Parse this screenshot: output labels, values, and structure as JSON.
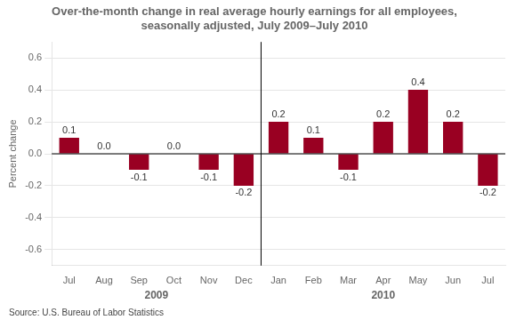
{
  "chart_data": {
    "type": "bar",
    "title": "Over-the-month change in real average hourly earnings for all employees,\nseasonally adjusted, July 2009–July 2010",
    "ylabel": "Percent change",
    "source": "Source: U.S. Bureau of Labor Statistics",
    "annotations": [
      "2009",
      "2010"
    ],
    "categories": [
      "Jul",
      "Aug",
      "Sep",
      "Oct",
      "Nov",
      "Dec",
      "Jan",
      "Feb",
      "Mar",
      "Apr",
      "May",
      "Jun",
      "Jul"
    ],
    "values": [
      0.1,
      0.0,
      -0.1,
      0.0,
      -0.1,
      -0.2,
      0.2,
      0.1,
      -0.1,
      0.2,
      0.4,
      0.2,
      -0.2
    ],
    "value_labels": [
      "0.1",
      "0.0",
      "-0.1",
      "0.0",
      "-0.1",
      "-0.2",
      "0.2",
      "0.1",
      "-0.1",
      "0.2",
      "0.4",
      "0.2",
      "-0.2"
    ],
    "data_labels": true,
    "color": "#990022",
    "ylim": [
      -0.7,
      0.7
    ],
    "yticks": [
      -0.6,
      -0.4,
      -0.2,
      {
        "value": 0,
        "label": "0.0"
      },
      0.2,
      0.4,
      0.6
    ],
    "grid": true
  }
}
